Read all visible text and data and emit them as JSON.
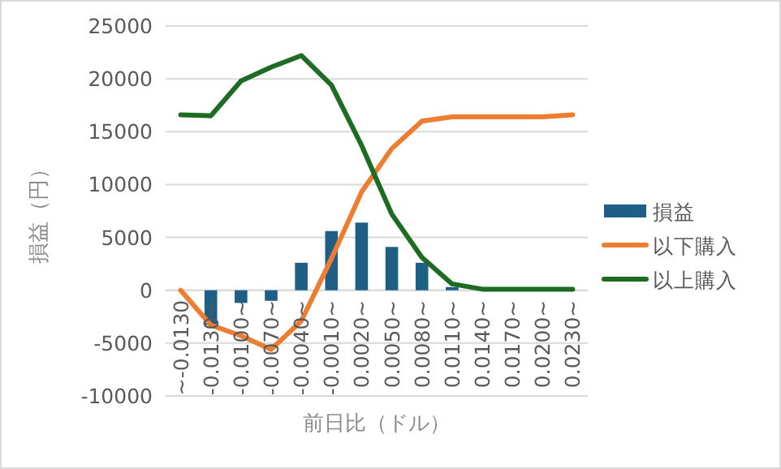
{
  "chart_data": {
    "type": "bar",
    "xlabel": "前日比（ドル）",
    "ylabel": "損益（円）",
    "categories": [
      "~-0.0130",
      "-0.0130~",
      "-0.0100~",
      "-0.0070~",
      "-0.0040~",
      "-0.0010~",
      "0.0020~",
      "0.0050~",
      "0.0080~",
      "0.0110~",
      "0.0140~",
      "0.0170~",
      "0.0200~",
      "0.0230~"
    ],
    "series": [
      {
        "name": "損益",
        "color": "#1f5f86",
        "values": [
          0,
          -3300,
          -1200,
          -1000,
          2600,
          5600,
          6400,
          4100,
          2600,
          300,
          0,
          0,
          0,
          0
        ]
      },
      {
        "name": "以下購入",
        "type": "line",
        "color": "#ed7d31",
        "values": [
          0,
          -3300,
          -4300,
          -5600,
          -2900,
          3000,
          9300,
          13400,
          16000,
          16400,
          16400,
          16400,
          16400,
          16600
        ]
      },
      {
        "name": "以上購入",
        "type": "line",
        "color": "#1e6b23",
        "values": [
          16600,
          16500,
          19800,
          21100,
          22200,
          19400,
          13700,
          7200,
          3100,
          600,
          100,
          100,
          100,
          100
        ]
      }
    ],
    "ylim": [
      -10000,
      25000
    ],
    "yticks": [
      -10000,
      -5000,
      0,
      5000,
      10000,
      15000,
      20000,
      25000
    ],
    "grid": "y",
    "legend": "right"
  }
}
